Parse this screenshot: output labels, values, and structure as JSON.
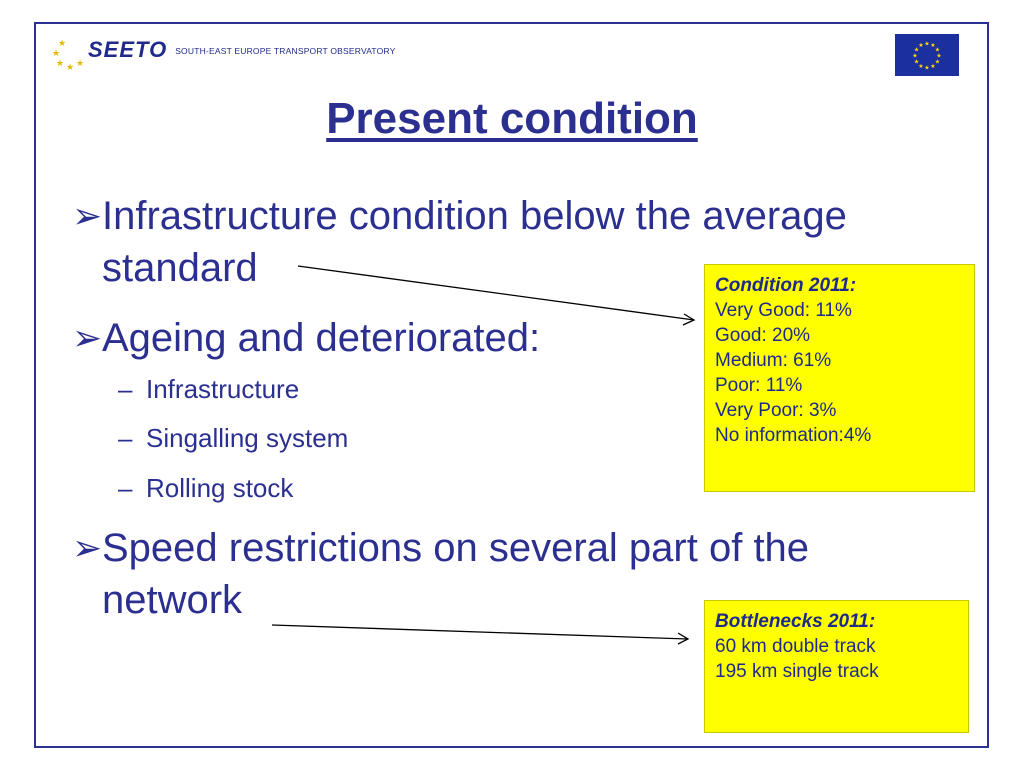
{
  "header": {
    "logo_text": "SEETO",
    "logo_subtitle": "SOUTH-EAST EUROPE TRANSPORT OBSERVATORY"
  },
  "slide": {
    "title": "Present condition",
    "bullets": [
      {
        "marker": "➢",
        "line1": "Infrastructure condition below the average",
        "line2": "standard"
      },
      {
        "marker": "➢",
        "line1": "Ageing and deteriorated:"
      },
      {
        "marker": "➢",
        "line1": "Speed restrictions on several part of the",
        "line2": "network"
      }
    ],
    "sub_items": [
      {
        "dash": "–",
        "text": "Infrastructure"
      },
      {
        "dash": "–",
        "text": "Singalling system"
      },
      {
        "dash": "–",
        "text": "Rolling stock"
      }
    ]
  },
  "callouts": {
    "condition": {
      "heading": "Condition 2011:",
      "lines": [
        "Very Good: 11%",
        "Good: 20%",
        "Medium: 61%",
        "Poor: 11%",
        "Very Poor: 3%",
        "No information:4%"
      ]
    },
    "bottlenecks": {
      "heading": "Bottlenecks 2011:",
      "lines": [
        "60 km double track",
        "195 km single track"
      ]
    }
  },
  "colors": {
    "text_blue": "#2b2f8f",
    "callout_yellow": "#ffff00",
    "frame": "#2b2f8f",
    "eu_blue": "#1c2f9e",
    "eu_star": "#ffdd00"
  },
  "icons": {
    "bullet": "arrowhead-bullet-icon",
    "eu_flag": "eu-flag-icon",
    "logo_stars": "stars-logo-icon"
  }
}
